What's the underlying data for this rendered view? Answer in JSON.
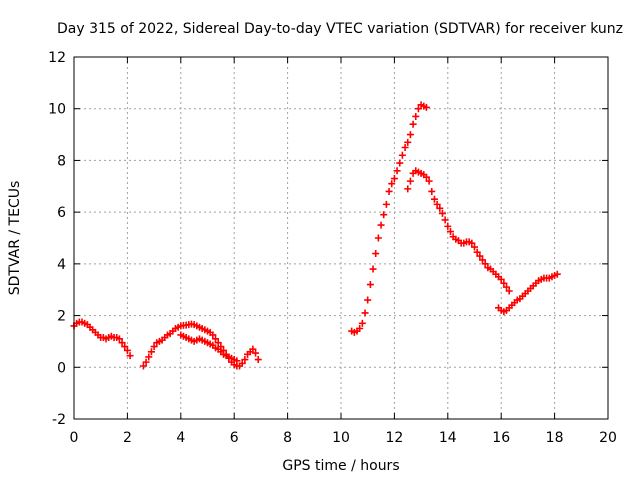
{
  "chart_data": {
    "type": "scatter",
    "title": "Day 315 of 2022, Sidereal Day-to-day VTEC variation (SDTVAR) for receiver kunz",
    "xlabel": "GPS time / hours",
    "ylabel": "SDTVAR / TECUs",
    "xlim": [
      0,
      20
    ],
    "ylim": [
      -2,
      12
    ],
    "xticks": [
      0,
      2,
      4,
      6,
      8,
      10,
      12,
      14,
      16,
      18,
      20
    ],
    "yticks": [
      -2,
      0,
      2,
      4,
      6,
      8,
      10,
      12
    ],
    "grid": true,
    "marker": "+",
    "series": [
      {
        "name": "SDTVAR",
        "color": "#ff0000",
        "points": [
          [
            0.0,
            1.6
          ],
          [
            0.1,
            1.7
          ],
          [
            0.2,
            1.75
          ],
          [
            0.3,
            1.75
          ],
          [
            0.4,
            1.7
          ],
          [
            0.5,
            1.65
          ],
          [
            0.6,
            1.55
          ],
          [
            0.7,
            1.45
          ],
          [
            0.8,
            1.35
          ],
          [
            0.9,
            1.25
          ],
          [
            1.0,
            1.15
          ],
          [
            1.1,
            1.15
          ],
          [
            1.2,
            1.1
          ],
          [
            1.3,
            1.15
          ],
          [
            1.4,
            1.2
          ],
          [
            1.5,
            1.15
          ],
          [
            1.6,
            1.15
          ],
          [
            1.7,
            1.1
          ],
          [
            1.8,
            0.95
          ],
          [
            1.9,
            0.8
          ],
          [
            2.0,
            0.65
          ],
          [
            2.1,
            0.45
          ],
          [
            2.6,
            0.05
          ],
          [
            2.7,
            0.2
          ],
          [
            2.8,
            0.4
          ],
          [
            2.9,
            0.6
          ],
          [
            3.0,
            0.8
          ],
          [
            3.1,
            0.95
          ],
          [
            3.2,
            1.0
          ],
          [
            3.3,
            1.05
          ],
          [
            3.4,
            1.15
          ],
          [
            3.5,
            1.25
          ],
          [
            3.6,
            1.3
          ],
          [
            3.7,
            1.4
          ],
          [
            3.8,
            1.5
          ],
          [
            3.9,
            1.55
          ],
          [
            4.0,
            1.6
          ],
          [
            4.1,
            1.62
          ],
          [
            4.2,
            1.63
          ],
          [
            4.3,
            1.65
          ],
          [
            4.4,
            1.67
          ],
          [
            4.5,
            1.65
          ],
          [
            4.6,
            1.6
          ],
          [
            4.7,
            1.55
          ],
          [
            4.8,
            1.5
          ],
          [
            4.9,
            1.45
          ],
          [
            5.0,
            1.4
          ],
          [
            5.1,
            1.35
          ],
          [
            5.2,
            1.25
          ],
          [
            5.3,
            1.1
          ],
          [
            5.4,
            0.95
          ],
          [
            5.5,
            0.8
          ],
          [
            5.6,
            0.65
          ],
          [
            5.7,
            0.5
          ],
          [
            5.8,
            0.35
          ],
          [
            5.9,
            0.2
          ],
          [
            6.0,
            0.1
          ],
          [
            6.1,
            0.05
          ],
          [
            6.2,
            0.05
          ],
          [
            6.3,
            0.15
          ],
          [
            6.4,
            0.3
          ],
          [
            6.5,
            0.5
          ],
          [
            6.6,
            0.6
          ],
          [
            6.7,
            0.7
          ],
          [
            6.8,
            0.55
          ],
          [
            6.9,
            0.3
          ],
          [
            4.0,
            1.25
          ],
          [
            4.1,
            1.2
          ],
          [
            4.2,
            1.15
          ],
          [
            4.3,
            1.1
          ],
          [
            4.4,
            1.05
          ],
          [
            4.5,
            1.0
          ],
          [
            4.6,
            1.05
          ],
          [
            4.7,
            1.1
          ],
          [
            4.8,
            1.05
          ],
          [
            4.9,
            1.0
          ],
          [
            5.0,
            0.95
          ],
          [
            5.1,
            0.9
          ],
          [
            5.2,
            0.85
          ],
          [
            5.3,
            0.75
          ],
          [
            5.4,
            0.7
          ],
          [
            5.5,
            0.6
          ],
          [
            5.6,
            0.5
          ],
          [
            5.7,
            0.45
          ],
          [
            5.8,
            0.4
          ],
          [
            5.9,
            0.35
          ],
          [
            6.0,
            0.3
          ],
          [
            6.1,
            0.25
          ],
          [
            10.4,
            1.4
          ],
          [
            10.5,
            1.35
          ],
          [
            10.6,
            1.4
          ],
          [
            10.7,
            1.5
          ],
          [
            10.8,
            1.7
          ],
          [
            10.9,
            2.1
          ],
          [
            11.0,
            2.6
          ],
          [
            11.1,
            3.2
          ],
          [
            11.2,
            3.8
          ],
          [
            11.3,
            4.4
          ],
          [
            11.4,
            5.0
          ],
          [
            11.5,
            5.5
          ],
          [
            11.6,
            5.9
          ],
          [
            11.7,
            6.3
          ],
          [
            11.8,
            6.8
          ],
          [
            11.9,
            7.1
          ],
          [
            12.0,
            7.3
          ],
          [
            12.1,
            7.6
          ],
          [
            12.2,
            7.9
          ],
          [
            12.3,
            8.2
          ],
          [
            12.4,
            8.5
          ],
          [
            12.5,
            8.7
          ],
          [
            12.6,
            9.0
          ],
          [
            12.7,
            9.4
          ],
          [
            12.8,
            9.7
          ],
          [
            12.9,
            10.0
          ],
          [
            13.0,
            10.15
          ],
          [
            13.1,
            10.1
          ],
          [
            13.2,
            10.05
          ],
          [
            12.5,
            6.9
          ],
          [
            12.6,
            7.2
          ],
          [
            12.7,
            7.5
          ],
          [
            12.8,
            7.6
          ],
          [
            12.9,
            7.55
          ],
          [
            13.0,
            7.5
          ],
          [
            13.1,
            7.45
          ],
          [
            13.2,
            7.35
          ],
          [
            13.3,
            7.2
          ],
          [
            13.4,
            6.8
          ],
          [
            13.5,
            6.5
          ],
          [
            13.6,
            6.3
          ],
          [
            13.7,
            6.15
          ],
          [
            13.8,
            5.95
          ],
          [
            13.9,
            5.7
          ],
          [
            14.0,
            5.45
          ],
          [
            14.1,
            5.25
          ],
          [
            14.2,
            5.05
          ],
          [
            14.3,
            4.95
          ],
          [
            14.4,
            4.9
          ],
          [
            14.5,
            4.8
          ],
          [
            14.6,
            4.8
          ],
          [
            14.7,
            4.85
          ],
          [
            14.8,
            4.85
          ],
          [
            14.9,
            4.8
          ],
          [
            15.0,
            4.65
          ],
          [
            15.1,
            4.45
          ],
          [
            15.2,
            4.3
          ],
          [
            15.3,
            4.15
          ],
          [
            15.4,
            4.0
          ],
          [
            15.5,
            3.85
          ],
          [
            15.6,
            3.8
          ],
          [
            15.7,
            3.7
          ],
          [
            15.8,
            3.6
          ],
          [
            15.9,
            3.5
          ],
          [
            16.0,
            3.4
          ],
          [
            16.1,
            3.25
          ],
          [
            16.2,
            3.1
          ],
          [
            16.3,
            2.95
          ],
          [
            15.9,
            2.3
          ],
          [
            16.0,
            2.2
          ],
          [
            16.1,
            2.15
          ],
          [
            16.2,
            2.2
          ],
          [
            16.3,
            2.3
          ],
          [
            16.4,
            2.4
          ],
          [
            16.5,
            2.5
          ],
          [
            16.6,
            2.6
          ],
          [
            16.7,
            2.65
          ],
          [
            16.8,
            2.75
          ],
          [
            16.9,
            2.85
          ],
          [
            17.0,
            2.95
          ],
          [
            17.1,
            3.05
          ],
          [
            17.2,
            3.15
          ],
          [
            17.3,
            3.25
          ],
          [
            17.4,
            3.35
          ],
          [
            17.5,
            3.4
          ],
          [
            17.6,
            3.45
          ],
          [
            17.7,
            3.45
          ],
          [
            17.8,
            3.45
          ],
          [
            17.9,
            3.5
          ],
          [
            18.0,
            3.55
          ],
          [
            18.1,
            3.6
          ]
        ]
      }
    ]
  }
}
